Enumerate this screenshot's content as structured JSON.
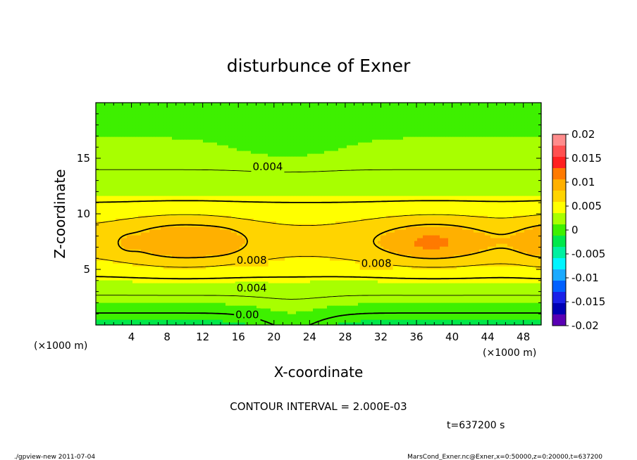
{
  "chart_data": {
    "type": "heatmap",
    "title": "disturbunce of Exner",
    "xlabel": "X-coordinate",
    "ylabel": "Z-coordinate",
    "x_unit": "(×1000 m)",
    "y_unit": "(×1000 m)",
    "xlim": [
      0,
      50
    ],
    "ylim": [
      0,
      20
    ],
    "x_ticks": [
      "4",
      "8",
      "12",
      "16",
      "20",
      "24",
      "28",
      "32",
      "36",
      "40",
      "44",
      "48"
    ],
    "y_ticks": [
      "5",
      "10",
      "15"
    ],
    "colorbar": {
      "range": [
        -0.02,
        0.02
      ],
      "tick_labels": [
        "0.02",
        "0.015",
        "0.01",
        "0.005",
        "0",
        "-0.005",
        "-0.01",
        "-0.015",
        "-0.02"
      ],
      "colors": [
        "#ff8c8c",
        "#ff5050",
        "#ff2020",
        "#ff7a00",
        "#ffb000",
        "#ffd400",
        "#ffff00",
        "#a8ff00",
        "#3ef000",
        "#00e84a",
        "#00f0a0",
        "#00f5ff",
        "#1aaaff",
        "#0060ff",
        "#1a20e8",
        "#0000b4",
        "#5a00b4"
      ]
    },
    "contour_interval": "CONTOUR INTERVAL = 2.000E-03",
    "contour_labels": [
      {
        "text": "0.004",
        "x": 19.3,
        "z": 14.2
      },
      {
        "text": "0.008",
        "x": 17.5,
        "z": 5.8
      },
      {
        "text": "0.008",
        "x": 31.5,
        "z": 5.5
      },
      {
        "text": "0.004",
        "x": 17.5,
        "z": 3.3
      },
      {
        "text": "0.00",
        "x": 17.0,
        "z": 0.9
      }
    ],
    "annotations": {
      "time": "t=637200 s",
      "footer_left": "./gpview-new   2011-07-04",
      "footer_right": "MarsCond_Exner.nc@Exner,x=0:50000,z=0:20000,t=637200"
    }
  }
}
